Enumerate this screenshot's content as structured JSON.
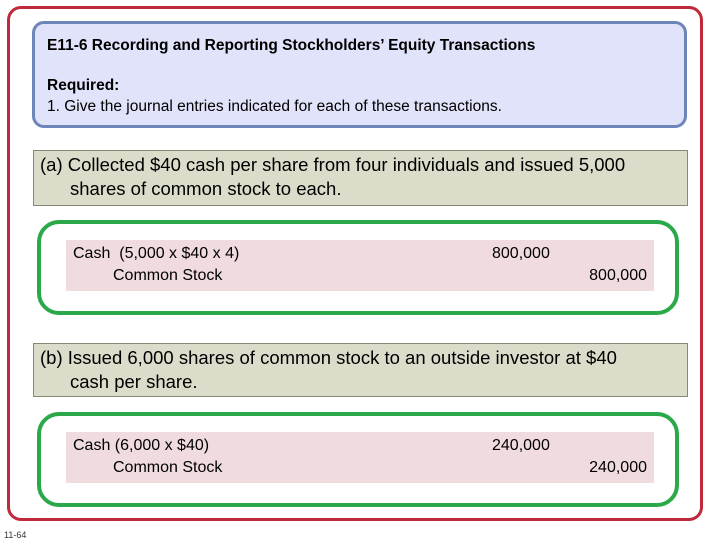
{
  "header": {
    "title": "E11-6 Recording and Reporting Stockholders’ Equity Transactions",
    "required_label": "Required:",
    "instruction": "1. Give the journal entries indicated for each of these transactions."
  },
  "transactions": [
    {
      "line1": "(a) Collected $40 cash per share from four individuals and issued 5,000",
      "line2": "shares of common stock to each.",
      "entry": {
        "debit_account": "Cash  (5,000 x $40 x 4)",
        "credit_account": "Common Stock",
        "debit_amount": "800,000",
        "credit_amount": "800,000"
      }
    },
    {
      "line1": "(b) Issued 6,000 shares of common stock to an outside investor at $40",
      "line2": "cash per share.",
      "entry": {
        "debit_account": "Cash (6,000 x $40)",
        "credit_account": "Common Stock",
        "debit_amount": "240,000",
        "credit_amount": "240,000"
      }
    }
  ],
  "page_number": "11-64"
}
